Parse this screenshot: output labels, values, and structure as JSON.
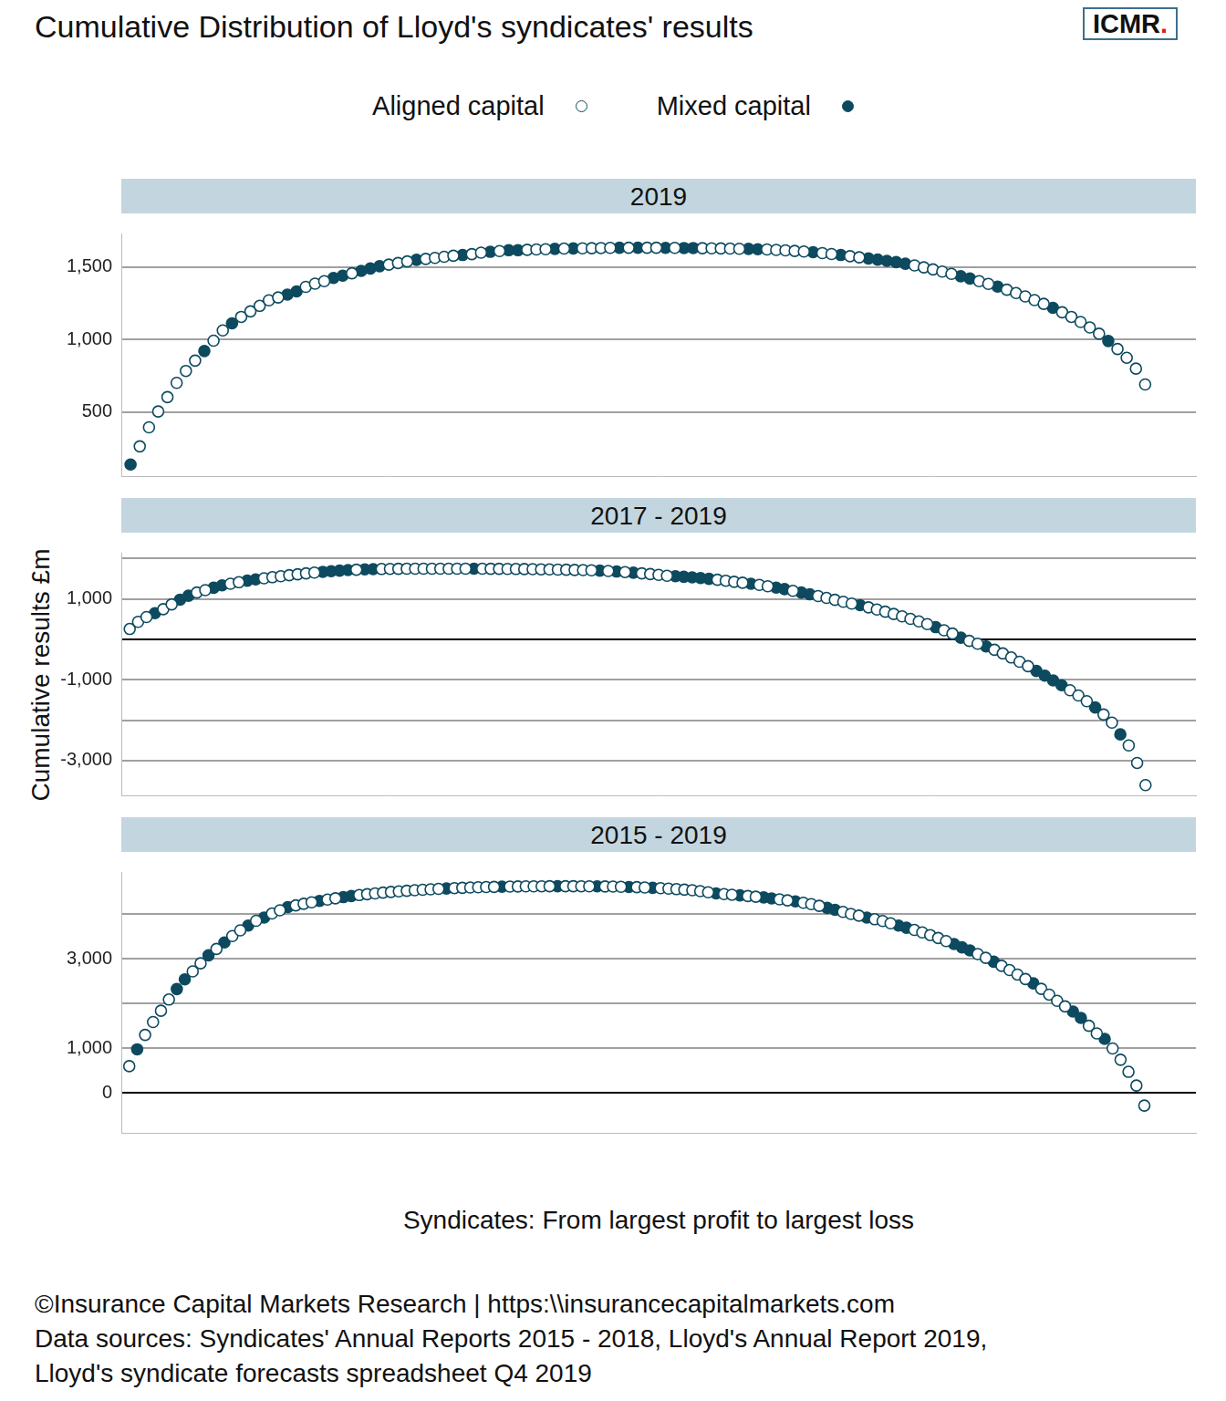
{
  "title": "Cumulative Distribution of Lloyd's syndicates' results",
  "logo": "ICMR.",
  "y_label": "Cumulative results £m",
  "x_label": "Syndicates: From largest profit to largest loss",
  "legend": "top",
  "footer": [
    "©Insurance Capital Markets Research | https:\\\\insurancecapitalmarkets.com",
    "Data sources: Syndicates' Annual Reports 2015 - 2018, Lloyd's Annual Report 2019,",
    "Lloyd's syndicate forecasts spreadsheet Q4 2019"
  ],
  "chart_data": [
    {
      "type": "scatter",
      "title": "2019",
      "grid": true,
      "tick_labels": "y",
      "xlim": [
        0,
        116.5
      ],
      "ylim": [
        60,
        1730
      ],
      "yticks": [
        500,
        {
          "value": 1000,
          "label": "1,000"
        },
        {
          "value": 1500,
          "label": "1,500"
        }
      ],
      "series": [
        {
          "name": "Aligned capital",
          "color": "#0d4a5f",
          "marker": "circle_open",
          "x": [
            2,
            3,
            4,
            5,
            6,
            7,
            8,
            10,
            11,
            13,
            14,
            15,
            16,
            17,
            20,
            21,
            22,
            25,
            29,
            30,
            31,
            33,
            34,
            35,
            36,
            38,
            39,
            41,
            44,
            45,
            46,
            48,
            50,
            51,
            52,
            53,
            55,
            57,
            58,
            60,
            63,
            64,
            65,
            66,
            67,
            70,
            71,
            72,
            73,
            74,
            76,
            77,
            79,
            80,
            86,
            87,
            88,
            89,
            90,
            93,
            94,
            96,
            97,
            98,
            99,
            100,
            102,
            103,
            104,
            105,
            106,
            108,
            109,
            110,
            111
          ],
          "values": [
            265,
            396,
            505,
            604,
            702,
            784,
            855,
            992,
            1063,
            1156,
            1194,
            1232,
            1270,
            1290,
            1363,
            1385,
            1402,
            1456,
            1516,
            1527,
            1538,
            1555,
            1562,
            1570,
            1577,
            1588,
            1598,
            1609,
            1618,
            1620,
            1622,
            1626,
            1628,
            1629,
            1630,
            1631,
            1632,
            1632,
            1632,
            1631,
            1629,
            1628,
            1627,
            1626,
            1625,
            1620,
            1617,
            1614,
            1610,
            1606,
            1595,
            1589,
            1574,
            1566,
            1510,
            1497,
            1483,
            1468,
            1452,
            1402,
            1383,
            1343,
            1320,
            1297,
            1272,
            1246,
            1188,
            1156,
            1121,
            1083,
            1040,
            935,
            875,
            800,
            691
          ]
        },
        {
          "name": "Mixed capital",
          "color": "#0d4a5f",
          "marker": "circle_filled",
          "x": [
            1,
            9,
            12,
            18,
            19,
            23,
            24,
            26,
            27,
            28,
            32,
            37,
            40,
            42,
            43,
            47,
            49,
            54,
            56,
            59,
            61,
            62,
            68,
            69,
            75,
            78,
            81,
            82,
            83,
            84,
            85,
            91,
            92,
            95,
            101,
            107
          ],
          "values": [
            140,
            921,
            1112,
            1309,
            1331,
            1424,
            1440,
            1473,
            1489,
            1505,
            1549,
            1582,
            1604,
            1615,
            1615,
            1624,
            1627,
            1632,
            1632,
            1631,
            1630,
            1630,
            1624,
            1622,
            1601,
            1582,
            1558,
            1550,
            1542,
            1533,
            1522,
            1436,
            1420,
            1364,
            1218,
            990
          ]
        }
      ]
    },
    {
      "type": "scatter",
      "title": "2017 - 2019",
      "grid": true,
      "tick_labels": "y",
      "xlim": [
        0,
        128
      ],
      "ylim": [
        -3860,
        2140
      ],
      "yticks": [
        {
          "value": -3000,
          "label": "-3,000"
        },
        {
          "value": -2000,
          "label": null
        },
        {
          "value": -1000,
          "label": "-1,000"
        },
        {
          "value": 0,
          "label": null
        },
        {
          "value": 1000,
          "label": "1,000"
        },
        {
          "value": 2000,
          "label": null
        }
      ],
      "series": [
        {
          "name": "Aligned capital",
          "color": "#0d4a5f",
          "marker": "circle_open",
          "x": [
            1,
            2,
            3,
            5,
            6,
            9,
            10,
            13,
            14,
            17,
            18,
            19,
            20,
            21,
            22,
            23,
            28,
            31,
            32,
            33,
            34,
            35,
            36,
            37,
            38,
            39,
            40,
            41,
            43,
            44,
            45,
            46,
            47,
            48,
            49,
            50,
            51,
            52,
            53,
            54,
            55,
            56,
            58,
            60,
            62,
            63,
            64,
            65,
            71,
            72,
            73,
            74,
            76,
            77,
            80,
            83,
            84,
            85,
            86,
            87,
            89,
            90,
            91,
            92,
            93,
            94,
            95,
            96,
            98,
            99,
            101,
            102,
            104,
            105,
            106,
            107,
            108,
            113,
            114,
            115,
            117,
            118,
            120,
            121,
            122
          ],
          "values": [
            255,
            431,
            549,
            745,
            862,
            1156,
            1215,
            1372,
            1411,
            1508,
            1535,
            1560,
            1585,
            1608,
            1630,
            1650,
            1720,
            1738,
            1741,
            1743,
            1744,
            1745,
            1746,
            1746,
            1746,
            1746,
            1746,
            1746,
            1744,
            1743,
            1742,
            1740,
            1738,
            1736,
            1733,
            1730,
            1727,
            1723,
            1719,
            1715,
            1710,
            1705,
            1688,
            1662,
            1630,
            1612,
            1592,
            1571,
            1472,
            1448,
            1422,
            1398,
            1345,
            1312,
            1198,
            1068,
            1022,
            975,
            927,
            882,
            790,
            737,
            682,
            625,
            566,
            505,
            442,
            376,
            222,
            140,
            -40,
            -110,
            -260,
            -350,
            -450,
            -555,
            -665,
            -1260,
            -1390,
            -1530,
            -1860,
            -2060,
            -2626,
            -3058,
            -3606
          ]
        },
        {
          "name": "Mixed capital",
          "color": "#0d4a5f",
          "marker": "circle_filled",
          "x": [
            4,
            7,
            8,
            11,
            12,
            15,
            16,
            24,
            25,
            26,
            27,
            29,
            30,
            42,
            57,
            59,
            61,
            66,
            67,
            68,
            69,
            70,
            75,
            78,
            79,
            81,
            82,
            88,
            97,
            100,
            103,
            109,
            110,
            111,
            112,
            116,
            119
          ],
          "values": [
            647,
            980,
            1078,
            1274,
            1333,
            1450,
            1480,
            1668,
            1684,
            1698,
            1710,
            1728,
            1734,
            1745,
            1698,
            1676,
            1646,
            1558,
            1545,
            1531,
            1514,
            1494,
            1372,
            1278,
            1240,
            1156,
            1112,
            843,
            300,
            39,
            -176,
            -784,
            -900,
            -1019,
            -1137,
            -1686,
            -2352
          ]
        }
      ]
    },
    {
      "type": "scatter",
      "title": "2015 - 2019",
      "grid": true,
      "tick_labels": "y",
      "xlim": [
        0,
        135.5
      ],
      "ylim": [
        -900,
        4950
      ],
      "yticks": [
        0,
        {
          "value": 1000,
          "label": "1,000"
        },
        {
          "value": 2000,
          "label": null
        },
        {
          "value": 3000,
          "label": "3,000"
        },
        {
          "value": 4000,
          "label": null
        }
      ],
      "series": [
        {
          "name": "Aligned capital",
          "color": "#0d4a5f",
          "marker": "circle_open",
          "x": [
            1,
            3,
            4,
            5,
            6,
            9,
            10,
            12,
            14,
            15,
            17,
            19,
            20,
            22,
            23,
            24,
            26,
            27,
            30,
            31,
            32,
            33,
            34,
            35,
            36,
            37,
            38,
            39,
            40,
            42,
            43,
            44,
            45,
            46,
            47,
            49,
            50,
            51,
            52,
            53,
            54,
            56,
            57,
            58,
            59,
            61,
            62,
            63,
            65,
            66,
            68,
            69,
            70,
            71,
            72,
            73,
            74,
            76,
            77,
            79,
            80,
            83,
            84,
            86,
            87,
            88,
            91,
            92,
            93,
            95,
            96,
            97,
            100,
            101,
            102,
            103,
            104,
            108,
            109,
            111,
            112,
            113,
            114,
            116,
            117,
            118,
            119,
            122,
            123,
            125,
            126,
            127,
            128,
            129
          ],
          "values": [
            595,
            1297,
            1586,
            1838,
            2090,
            2721,
            2901,
            3225,
            3513,
            3640,
            3856,
            4018,
            4090,
            4200,
            4236,
            4270,
            4332,
            4360,
            4432,
            4452,
            4470,
            4487,
            4502,
            4516,
            4529,
            4541,
            4552,
            4562,
            4571,
            4588,
            4595,
            4601,
            4607,
            4612,
            4616,
            4623,
            4625,
            4627,
            4628,
            4629,
            4630,
            4630,
            4630,
            4629,
            4628,
            4625,
            4622,
            4618,
            4609,
            4602,
            4586,
            4576,
            4565,
            4553,
            4540,
            4520,
            4495,
            4455,
            4440,
            4410,
            4395,
            4336,
            4313,
            4260,
            4230,
            4190,
            4055,
            4010,
            3970,
            3890,
            3850,
            3800,
            3650,
            3595,
            3535,
            3470,
            3400,
            3110,
            3025,
            2845,
            2750,
            2650,
            2550,
            2330,
            2200,
            2060,
            1935,
            1500,
            1330,
            991,
            739,
            469,
            162,
            -288
          ]
        },
        {
          "name": "Mixed capital",
          "color": "#0d4a5f",
          "marker": "circle_filled",
          "x": [
            2,
            7,
            8,
            11,
            13,
            16,
            18,
            21,
            25,
            28,
            29,
            41,
            48,
            55,
            60,
            64,
            67,
            75,
            78,
            81,
            82,
            85,
            89,
            90,
            94,
            98,
            99,
            105,
            106,
            107,
            110,
            115,
            120,
            121,
            124
          ],
          "values": [
            973,
            2325,
            2541,
            3081,
            3369,
            3748,
            3928,
            4162,
            4302,
            4386,
            4410,
            4580,
            4620,
            4630,
            4627,
            4614,
            4595,
            4469,
            4425,
            4379,
            4358,
            4289,
            4144,
            4100,
            3928,
            3748,
            3700,
            3334,
            3260,
            3190,
            2937,
            2451,
            1820,
            1676,
            1207
          ]
        }
      ]
    }
  ]
}
